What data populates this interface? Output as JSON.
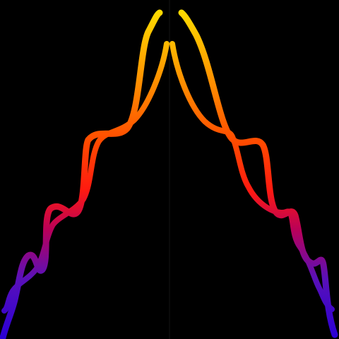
{
  "artwork": {
    "background": "#000000",
    "divider_color": "#141414",
    "palette": [
      "#2a00d6",
      "#7a0fa8",
      "#e0003a",
      "#ff2a00",
      "#ff8c00",
      "#ffd200",
      "#ffe600"
    ],
    "strokes": [
      "left-outer-ribbon",
      "left-inner-ribbon",
      "right-inner-ribbon",
      "right-outer-ribbon"
    ]
  }
}
